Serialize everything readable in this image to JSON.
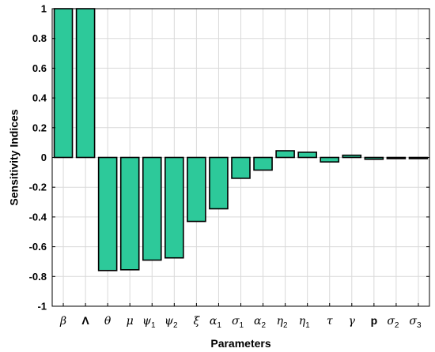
{
  "chart_data": {
    "type": "bar",
    "xlabel": "Parameters",
    "ylabel": "Sensitivity Indices",
    "ylim": [
      -1,
      1
    ],
    "yticks": [
      -1,
      -0.8,
      -0.6,
      -0.4,
      -0.2,
      0,
      0.2,
      0.4,
      0.6,
      0.8,
      1
    ],
    "ytick_labels": [
      "-1",
      "-0.8",
      "-0.6",
      "-0.4",
      "-0.2",
      "0",
      "0.2",
      "0.4",
      "0.6",
      "0.8",
      "1"
    ],
    "grid": true,
    "bar_color": "#2dc99a",
    "categories": [
      {
        "base": "β",
        "sub": "",
        "italic": true
      },
      {
        "base": "Λ",
        "sub": "",
        "italic": false
      },
      {
        "base": "θ",
        "sub": "",
        "italic": true
      },
      {
        "base": "μ",
        "sub": "",
        "italic": true
      },
      {
        "base": "ψ",
        "sub": "1",
        "italic": true
      },
      {
        "base": "ψ",
        "sub": "2",
        "italic": true
      },
      {
        "base": "ξ",
        "sub": "",
        "italic": true
      },
      {
        "base": "α",
        "sub": "1",
        "italic": true
      },
      {
        "base": "σ",
        "sub": "1",
        "italic": true
      },
      {
        "base": "α",
        "sub": "2",
        "italic": true
      },
      {
        "base": "η",
        "sub": "2",
        "italic": true
      },
      {
        "base": "η",
        "sub": "1",
        "italic": true
      },
      {
        "base": "τ",
        "sub": "",
        "italic": true
      },
      {
        "base": "γ",
        "sub": "",
        "italic": true
      },
      {
        "base": "p",
        "sub": "",
        "italic": false
      },
      {
        "base": "σ",
        "sub": "2",
        "italic": true
      },
      {
        "base": "σ",
        "sub": "3",
        "italic": true
      }
    ],
    "values": [
      1,
      1,
      -0.76,
      -0.755,
      -0.69,
      -0.675,
      -0.43,
      -0.345,
      -0.14,
      -0.085,
      0.045,
      0.035,
      -0.03,
      0.015,
      -0.012,
      -0.006,
      -0.004
    ]
  }
}
